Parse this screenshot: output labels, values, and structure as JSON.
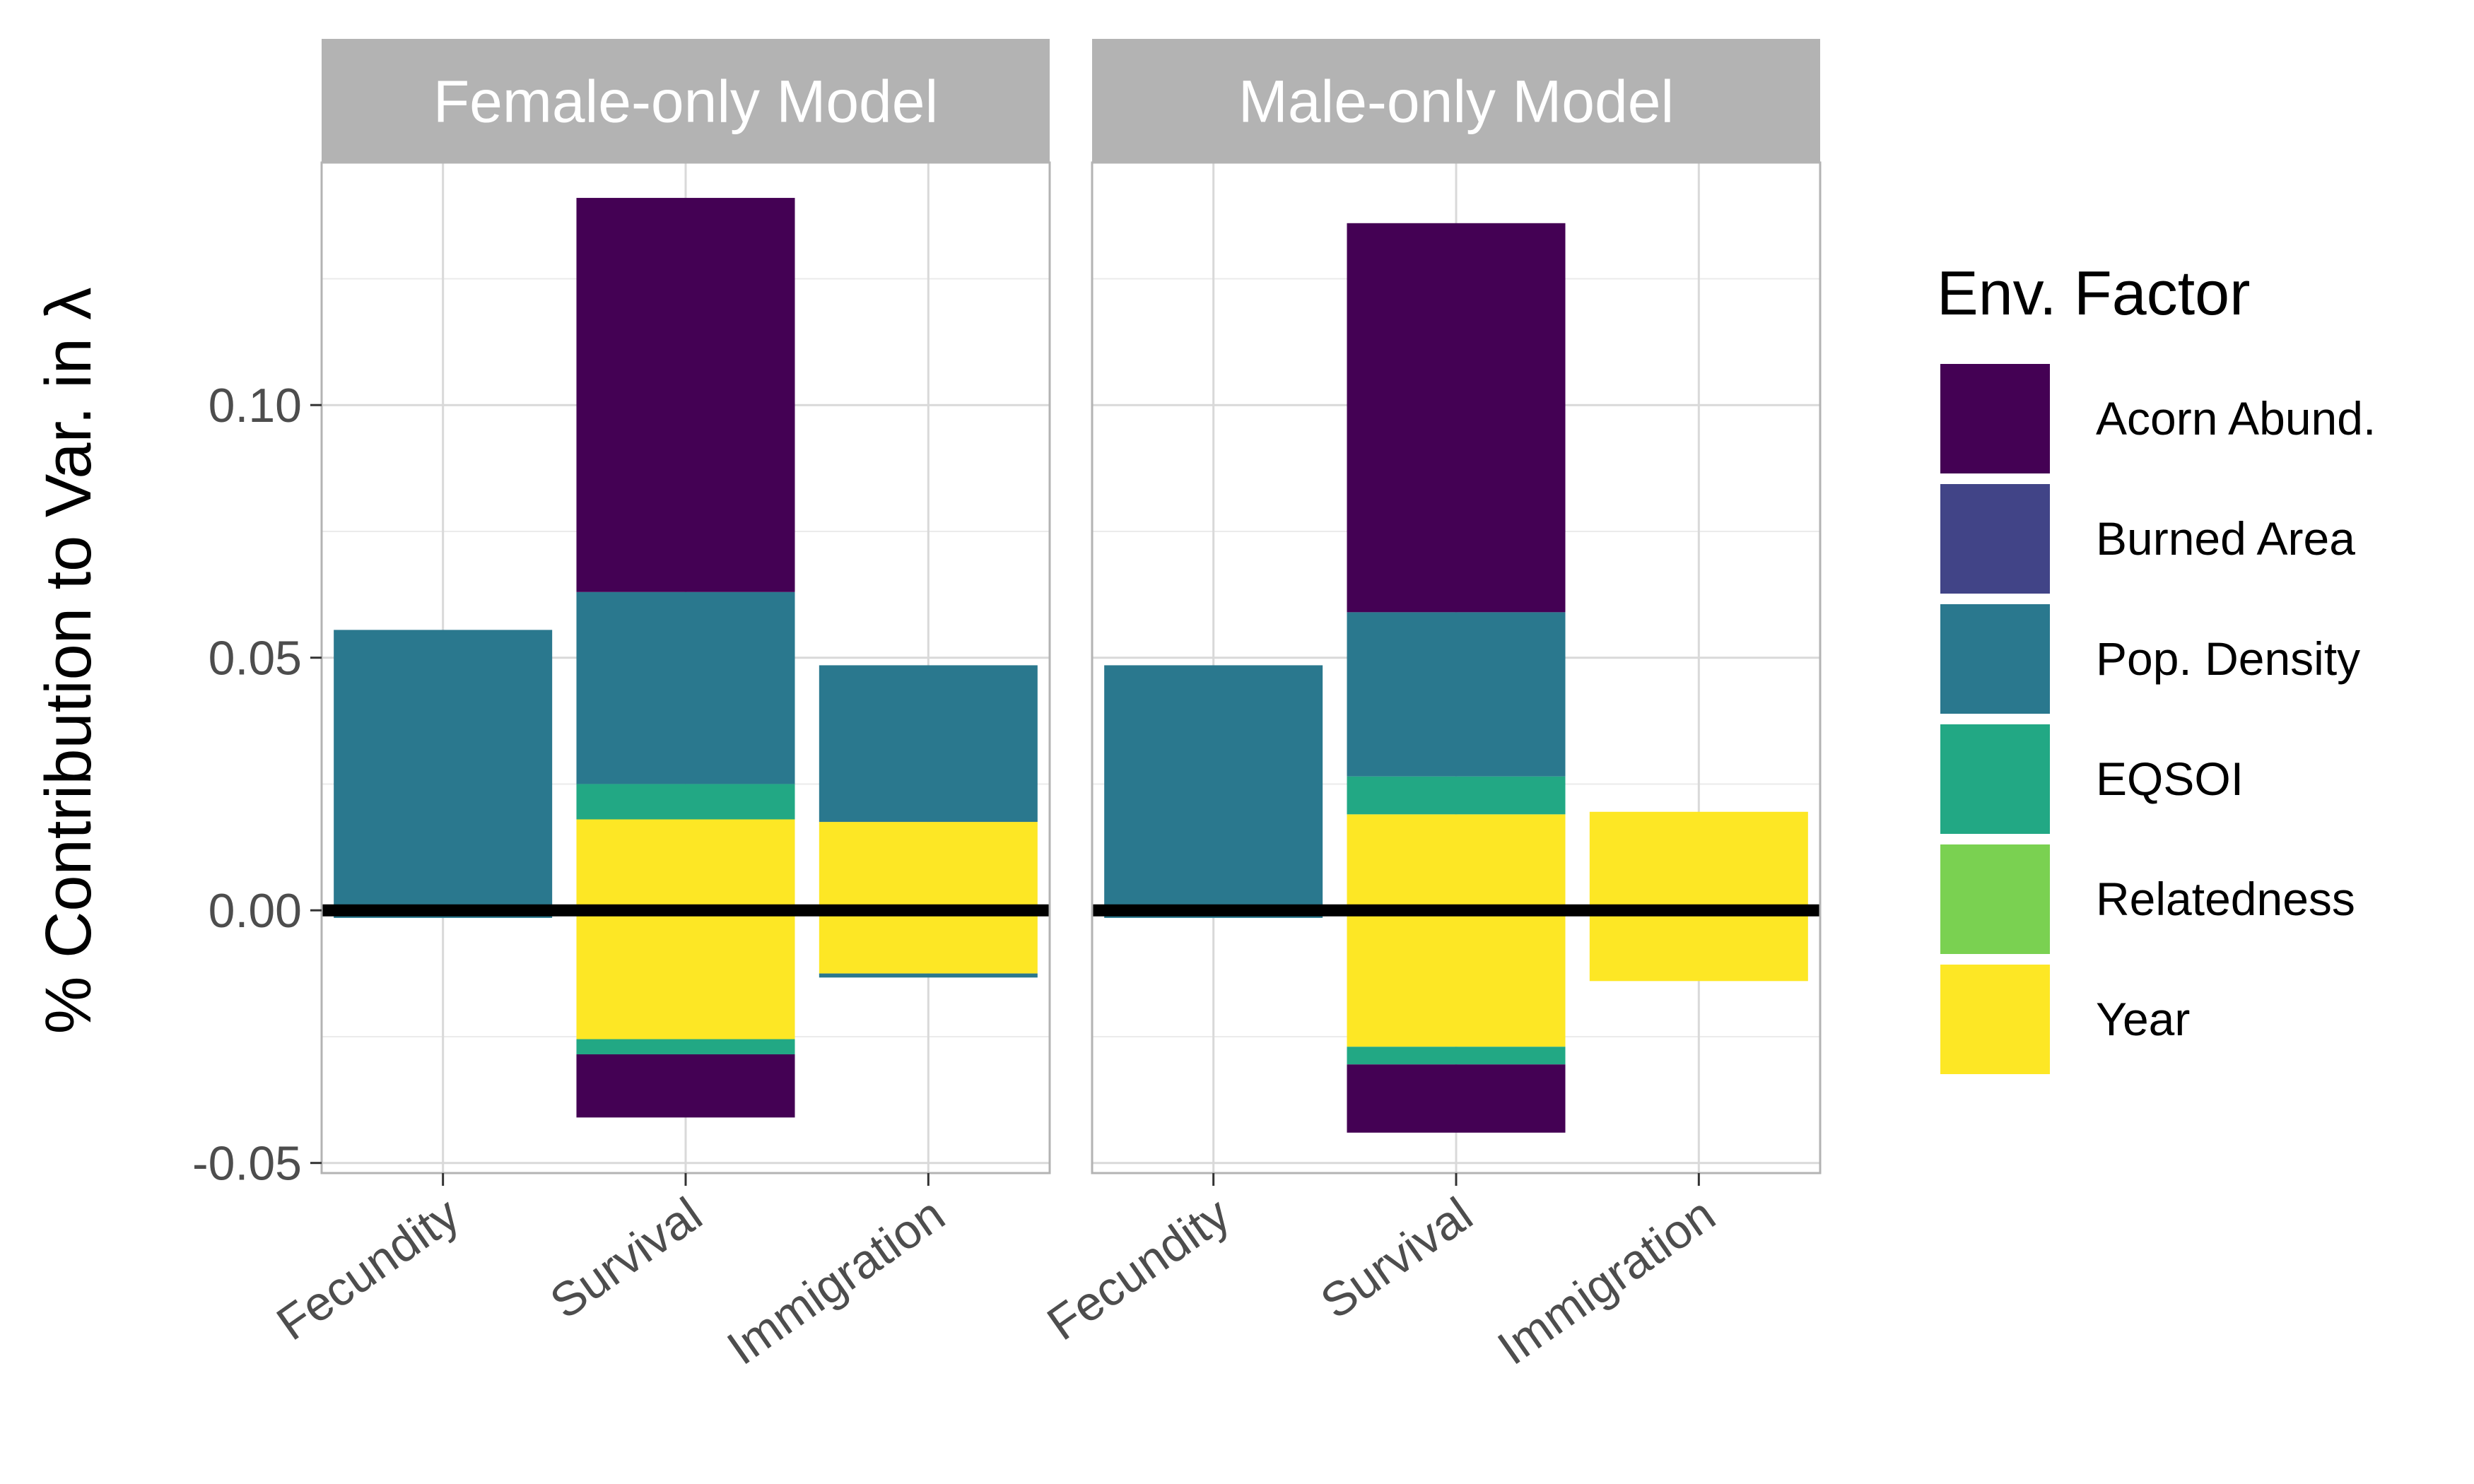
{
  "chart_data": {
    "type": "bar",
    "stacked": true,
    "ylabel": "% Contribution to Var. in λ",
    "ylim": [
      -0.052,
      0.148
    ],
    "yticks": [
      -0.05,
      0.0,
      0.05,
      0.1
    ],
    "ytick_labels": [
      "-0.05",
      "0.00",
      "0.05",
      "0.10"
    ],
    "grid": true,
    "categories": [
      "Fecundity",
      "Survival",
      "Immigration"
    ],
    "legend": {
      "title": "Env. Factor",
      "position": "right",
      "items": [
        {
          "name": "Acorn Abund.",
          "color": "#440154"
        },
        {
          "name": "Burned Area",
          "color": "#414487"
        },
        {
          "name": "Pop. Density",
          "color": "#2A788E"
        },
        {
          "name": "EQSOI",
          "color": "#22A884"
        },
        {
          "name": "Relatedness",
          "color": "#7AD151"
        },
        {
          "name": "Year",
          "color": "#FDE725"
        }
      ]
    },
    "panels": [
      {
        "title": "Female-only Model",
        "bars": [
          {
            "category": "Fecundity",
            "segments": [
              {
                "factor": "Relatedness",
                "value": 0.001
              },
              {
                "factor": "Pop. Density",
                "value": 0.0545
              },
              {
                "factor": "Pop. Density",
                "value": -0.0015
              }
            ]
          },
          {
            "category": "Survival",
            "segments": [
              {
                "factor": "Year",
                "value": 0.018
              },
              {
                "factor": "EQSOI",
                "value": 0.007
              },
              {
                "factor": "Pop. Density",
                "value": 0.038
              },
              {
                "factor": "Acorn Abund.",
                "value": 0.078
              },
              {
                "factor": "Year",
                "value": -0.0255
              },
              {
                "factor": "EQSOI",
                "value": -0.003
              },
              {
                "factor": "Acorn Abund.",
                "value": -0.0125
              }
            ]
          },
          {
            "category": "Immigration",
            "segments": [
              {
                "factor": "Year",
                "value": 0.0175
              },
              {
                "factor": "Pop. Density",
                "value": 0.031
              },
              {
                "factor": "Year",
                "value": -0.0125
              },
              {
                "factor": "Pop. Density",
                "value": -0.0008
              }
            ]
          }
        ]
      },
      {
        "title": "Male-only Model",
        "bars": [
          {
            "category": "Fecundity",
            "segments": [
              {
                "factor": "Relatedness",
                "value": 0.001
              },
              {
                "factor": "Pop. Density",
                "value": 0.0475
              },
              {
                "factor": "Pop. Density",
                "value": -0.0015
              }
            ]
          },
          {
            "category": "Survival",
            "segments": [
              {
                "factor": "Year",
                "value": 0.019
              },
              {
                "factor": "EQSOI",
                "value": 0.0075
              },
              {
                "factor": "Pop. Density",
                "value": 0.0325
              },
              {
                "factor": "Acorn Abund.",
                "value": 0.077
              },
              {
                "factor": "Year",
                "value": -0.027
              },
              {
                "factor": "EQSOI",
                "value": -0.0035
              },
              {
                "factor": "Acorn Abund.",
                "value": -0.0135
              }
            ]
          },
          {
            "category": "Immigration",
            "segments": [
              {
                "factor": "Year",
                "value": 0.0195
              },
              {
                "factor": "Year",
                "value": -0.014
              }
            ]
          }
        ]
      }
    ]
  }
}
